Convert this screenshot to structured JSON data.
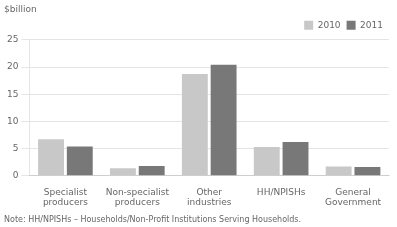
{
  "chart_data": {
    "type": "bar",
    "ylabel": "$billion",
    "annotations": [
      "Note: HH/NPISHs – Households/Non-Profit Institutions Serving Households."
    ],
    "categories": [
      "Specialist\nproducers",
      "Non-specialist\nproducers",
      "Other\nindustries",
      "HH/NPISHs",
      "General\nGovernment"
    ],
    "series": [
      {
        "name": "2010",
        "color": "#c8c8c8",
        "values": [
          6.7,
          1.4,
          18.7,
          5.3,
          1.7
        ]
      },
      {
        "name": "2011",
        "color": "#787878",
        "values": [
          5.4,
          1.8,
          20.4,
          6.2,
          1.6
        ]
      }
    ],
    "ylim": [
      0,
      25
    ],
    "yticks": [
      0,
      5,
      10,
      15,
      20,
      25
    ],
    "grid": true,
    "legend": "upper right"
  }
}
